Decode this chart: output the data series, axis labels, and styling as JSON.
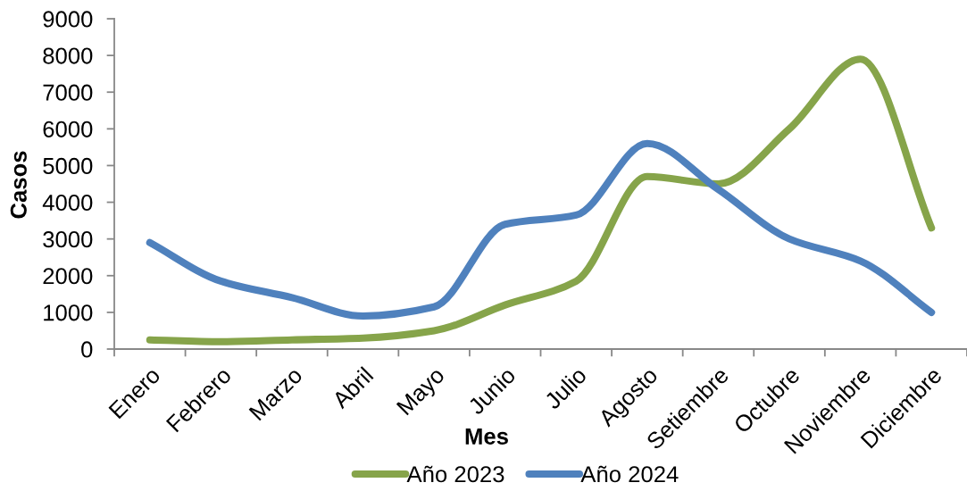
{
  "chart_data": {
    "type": "line",
    "xlabel": "Mes",
    "ylabel": "Casos",
    "categories": [
      "Enero",
      "Febrero",
      "Marzo",
      "Abril",
      "Mayo",
      "Junio",
      "Julio",
      "Agosto",
      "Setiembre",
      "Octubre",
      "Noviembre",
      "Diciembre"
    ],
    "series": [
      {
        "name": "Año 2023",
        "color": "#86a44a",
        "values": [
          250,
          200,
          250,
          300,
          500,
          1200,
          1850,
          4700,
          4500,
          6000,
          7900,
          3300
        ]
      },
      {
        "name": "Año 2024",
        "color": "#4f81bd",
        "values": [
          2900,
          1850,
          1400,
          900,
          1150,
          3400,
          3650,
          5600,
          4350,
          3000,
          2400,
          1000
        ]
      }
    ],
    "ylim": [
      0,
      9000
    ],
    "yticks": [
      0,
      1000,
      2000,
      3000,
      4000,
      5000,
      6000,
      7000,
      8000,
      9000
    ],
    "grid": false,
    "legend": "bottom",
    "line_style": "solid"
  }
}
